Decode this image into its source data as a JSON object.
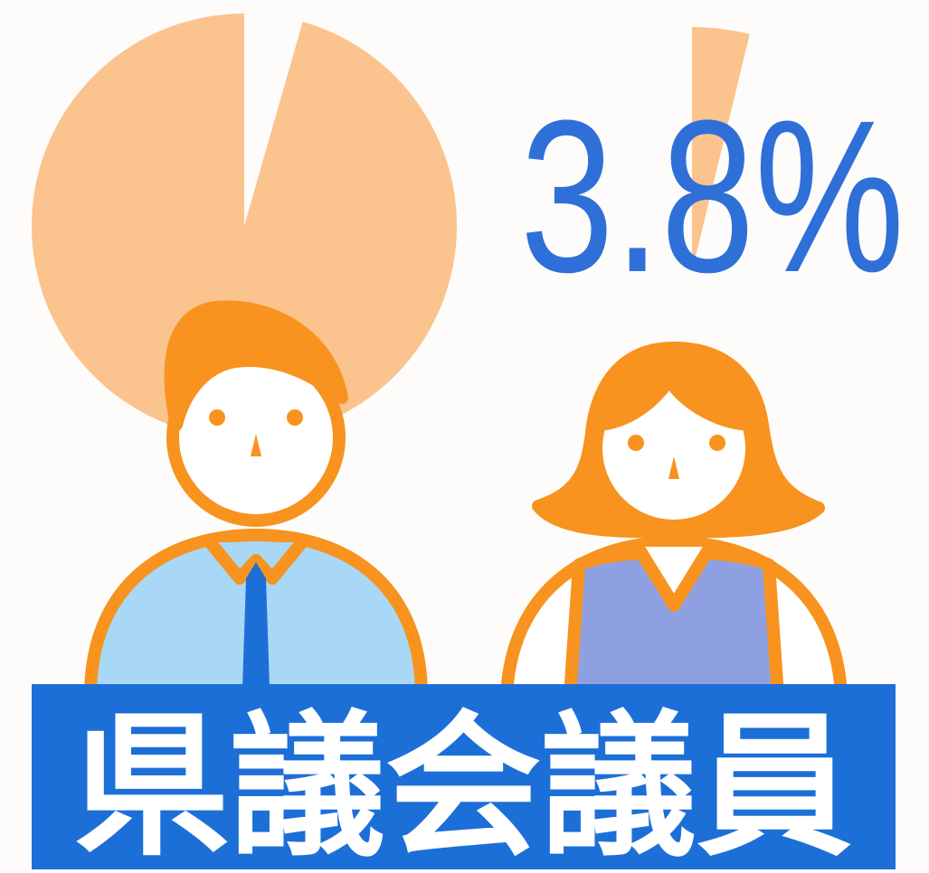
{
  "chart_data": {
    "type": "pie",
    "title": "県議会議員",
    "values": [
      3.8,
      96.2
    ],
    "value_labels": [
      "3.8%",
      null
    ],
    "color": "#fbc38e",
    "label_color": "#2f6fd8"
  }
}
